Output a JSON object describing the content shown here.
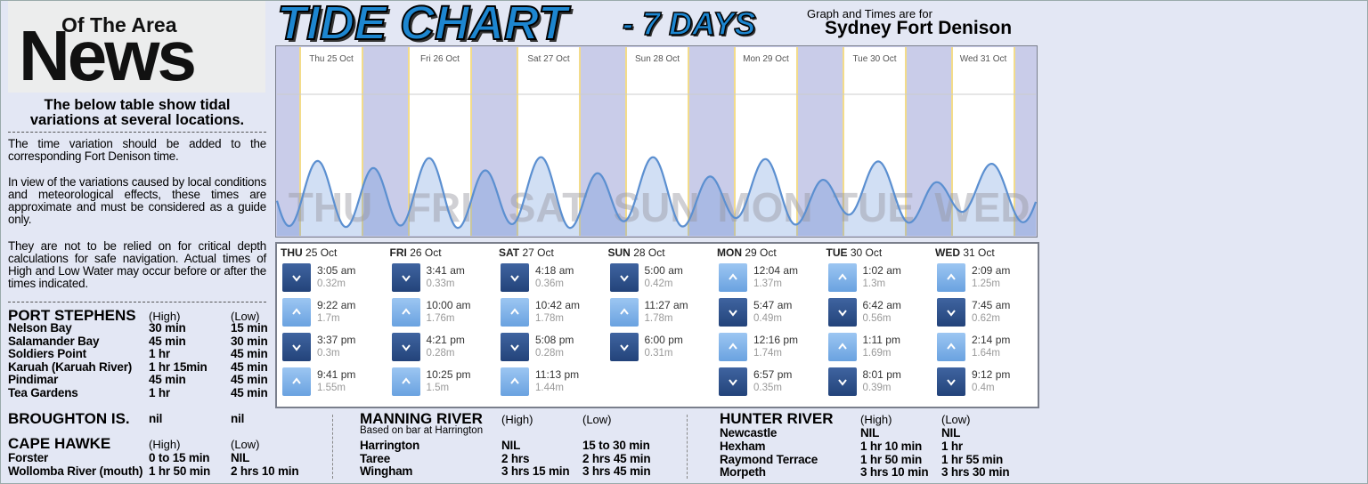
{
  "header": {
    "logo_top": "Of The Area",
    "logo_main": "News",
    "title": "TIDE CHART",
    "subtitle": "- 7 DAYS",
    "note": "Graph and Times are for",
    "location": "Sydney Fort Denison"
  },
  "intro": {
    "heading": "The below table show tidal variations at several locations.",
    "paragraphs": [
      "The time variation should be added to the corresponding Fort Denison time.",
      "In view of the variations caused by local conditions and meteorological effects, these times are approximate and must be considered as a guide only.",
      "They are not to be relied on for critical depth calculations for safe navigation. Actual times of High and Low Water may occur before or after the times indicated."
    ]
  },
  "graph": {
    "day_labels": [
      "Thu 25 Oct",
      "Fri 26 Oct",
      "Sat 27 Oct",
      "Sun 28 Oct",
      "Mon 29 Oct",
      "Tue 30 Oct",
      "Wed 31 Oct"
    ],
    "watermarks": [
      "THU",
      "FRI",
      "SAT",
      "SUN",
      "MON",
      "TUE",
      "WED"
    ]
  },
  "tides": [
    {
      "day": "THU",
      "date": "25 Oct",
      "entries": [
        {
          "time": "3:05 am",
          "height": "0.32m"
        },
        {
          "time": "9:22 am",
          "height": "1.7m"
        },
        {
          "time": "3:37 pm",
          "height": "0.3m"
        },
        {
          "time": "9:41 pm",
          "height": "1.55m"
        }
      ]
    },
    {
      "day": "FRI",
      "date": "26 Oct",
      "entries": [
        {
          "time": "3:41 am",
          "height": "0.33m"
        },
        {
          "time": "10:00 am",
          "height": "1.76m"
        },
        {
          "time": "4:21 pm",
          "height": "0.28m"
        },
        {
          "time": "10:25 pm",
          "height": "1.5m"
        }
      ]
    },
    {
      "day": "SAT",
      "date": "27 Oct",
      "entries": [
        {
          "time": "4:18 am",
          "height": "0.36m"
        },
        {
          "time": "10:42 am",
          "height": "1.78m"
        },
        {
          "time": "5:08 pm",
          "height": "0.28m"
        },
        {
          "time": "11:13 pm",
          "height": "1.44m"
        }
      ]
    },
    {
      "day": "SUN",
      "date": "28 Oct",
      "entries": [
        {
          "time": "5:00 am",
          "height": "0.42m"
        },
        {
          "time": "11:27 am",
          "height": "1.78m"
        },
        {
          "time": "6:00 pm",
          "height": "0.31m"
        }
      ]
    },
    {
      "day": "MON",
      "date": "29 Oct",
      "entries": [
        {
          "time": "12:04 am",
          "height": "1.37m"
        },
        {
          "time": "5:47 am",
          "height": "0.49m"
        },
        {
          "time": "12:16 pm",
          "height": "1.74m"
        },
        {
          "time": "6:57 pm",
          "height": "0.35m"
        }
      ]
    },
    {
      "day": "TUE",
      "date": "30 Oct",
      "entries": [
        {
          "time": "1:02 am",
          "height": "1.3m"
        },
        {
          "time": "6:42 am",
          "height": "0.56m"
        },
        {
          "time": "1:11 pm",
          "height": "1.69m"
        },
        {
          "time": "8:01 pm",
          "height": "0.39m"
        }
      ]
    },
    {
      "day": "WED",
      "date": "31 Oct",
      "entries": [
        {
          "time": "2:09 am",
          "height": "1.25m"
        },
        {
          "time": "7:45 am",
          "height": "0.62m"
        },
        {
          "time": "2:14 pm",
          "height": "1.64m"
        },
        {
          "time": "9:12 pm",
          "height": "0.4m"
        }
      ]
    }
  ],
  "port_stephens": {
    "name": "PORT STEPHENS",
    "high_label": "(High)",
    "low_label": "(Low)",
    "rows": [
      [
        "Nelson Bay",
        "30 min",
        "15 min"
      ],
      [
        "Salamander Bay",
        "45 min",
        "30 min"
      ],
      [
        "Soldiers Point",
        "1 hr",
        "45 min"
      ],
      [
        "Karuah (Karuah River)",
        "1 hr 15min",
        "45 min"
      ],
      [
        "Pindimar",
        "45 min",
        "45 min"
      ],
      [
        "Tea Gardens",
        "1 hr",
        "45 min"
      ]
    ]
  },
  "broughton": {
    "name": "BROUGHTON IS.",
    "high": "nil",
    "low": "nil"
  },
  "cape_hawke": {
    "name": "CAPE HAWKE",
    "high_label": "(High)",
    "low_label": "(Low)",
    "rows": [
      [
        "Forster",
        "0 to 15 min",
        "NIL"
      ],
      [
        "Wollomba River (mouth)",
        "1 hr 50 min",
        "2 hrs 10 min"
      ]
    ]
  },
  "manning": {
    "name": "MANNING RIVER",
    "high_label": "(High)",
    "low_label": "(Low)",
    "note": "Based on bar at Harrington",
    "rows": [
      [
        "Harrington",
        "NIL",
        "15 to 30 min"
      ],
      [
        "Taree",
        "2 hrs",
        "2 hrs 45 min"
      ],
      [
        "Wingham",
        "3 hrs 15 min",
        "3 hrs 45 min"
      ]
    ]
  },
  "hunter": {
    "name": "HUNTER RIVER",
    "high_label": "(High)",
    "low_label": "(Low)",
    "rows": [
      [
        "Newcastle",
        "NIL",
        "NIL"
      ],
      [
        "Hexham",
        "1 hr 10 min",
        "1 hr"
      ],
      [
        "Raymond Terrace",
        "1 hr 50 min",
        "1 hr 55 min"
      ],
      [
        "Morpeth",
        "3 hrs 10 min",
        "3 hrs 30 min"
      ]
    ]
  }
}
